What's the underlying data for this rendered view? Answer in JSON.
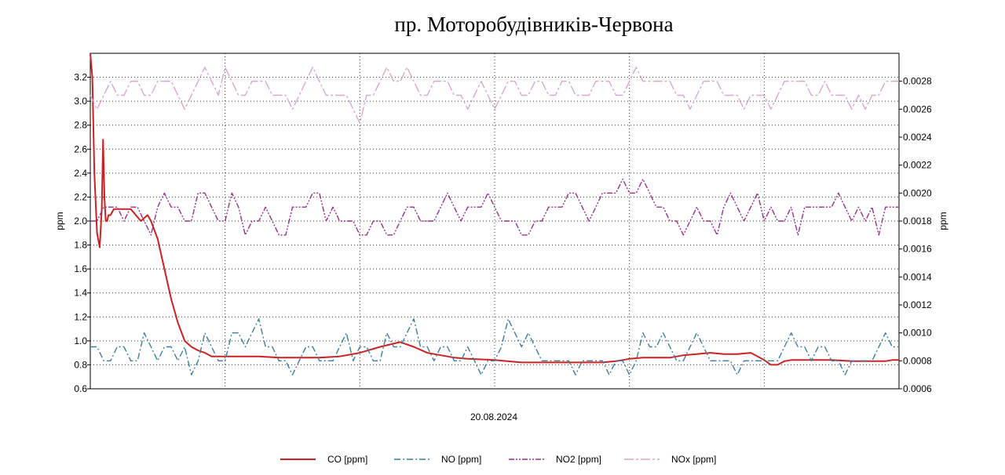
{
  "chart_data": {
    "type": "line",
    "title": "пр. Моторобудівників-Червона",
    "xlabel": "20.08.2024",
    "ylabel_left": "ppm",
    "ylabel_right": "ppm",
    "x_range": [
      0,
      120
    ],
    "ylim_left": [
      0.6,
      3.4
    ],
    "ylim_right": [
      0.0006,
      0.003
    ],
    "yticks_left": [
      "0.6",
      "0.8",
      "1.0",
      "1.2",
      "1.4",
      "1.6",
      "1.8",
      "2.0",
      "2.2",
      "2.4",
      "2.6",
      "2.8",
      "3.0",
      "3.2"
    ],
    "yticks_right": [
      "0.0006",
      "0.0008",
      "0.0010",
      "0.0012",
      "0.0014",
      "0.0016",
      "0.0018",
      "0.0020",
      "0.0022",
      "0.0024",
      "0.0026",
      "0.0028"
    ],
    "grid": true,
    "legend_position": "bottom",
    "series": [
      {
        "name": "CO [ppm]",
        "axis": "left",
        "color": "#cc2222",
        "dash": "solid",
        "x": [
          0,
          0.3,
          0.6,
          1,
          1.4,
          1.7,
          1.9,
          2.1,
          2.3,
          2.5,
          2.7,
          3,
          3.5,
          4.5,
          6,
          7.5,
          8.5,
          9,
          10,
          11,
          12,
          13,
          14,
          15,
          16,
          17,
          18,
          20,
          22,
          25,
          28,
          31,
          34,
          37,
          40,
          43,
          46,
          48,
          50,
          52,
          53,
          54,
          56,
          60,
          64,
          66,
          68,
          70,
          72,
          74,
          76,
          78,
          80,
          82,
          84,
          86,
          88,
          90,
          92,
          94,
          96,
          98,
          100,
          101,
          102,
          103,
          104,
          105,
          107,
          110,
          113,
          116,
          118,
          119,
          120
        ],
        "values": [
          3.4,
          3.2,
          2.4,
          1.9,
          1.78,
          2.1,
          2.68,
          2.2,
          2.0,
          2.0,
          2.05,
          2.05,
          2.1,
          2.1,
          2.1,
          2.0,
          2.05,
          2.0,
          1.85,
          1.6,
          1.35,
          1.15,
          1.0,
          0.95,
          0.92,
          0.9,
          0.87,
          0.87,
          0.87,
          0.87,
          0.86,
          0.86,
          0.86,
          0.87,
          0.9,
          0.95,
          0.99,
          0.95,
          0.9,
          0.88,
          0.87,
          0.86,
          0.85,
          0.84,
          0.82,
          0.82,
          0.82,
          0.82,
          0.82,
          0.82,
          0.82,
          0.83,
          0.85,
          0.86,
          0.86,
          0.86,
          0.88,
          0.89,
          0.9,
          0.89,
          0.89,
          0.9,
          0.84,
          0.8,
          0.8,
          0.83,
          0.84,
          0.84,
          0.84,
          0.84,
          0.83,
          0.83,
          0.83,
          0.84,
          0.84
        ]
      },
      {
        "name": "NO [ppm]",
        "axis": "right",
        "color": "#3a7fa0",
        "dash": "8 3 2 3",
        "x": [
          0,
          1,
          2,
          3,
          4,
          5,
          6,
          7,
          8,
          9,
          10,
          11,
          12,
          13,
          14,
          15,
          16,
          17,
          18,
          19,
          20,
          21,
          22,
          23,
          24,
          25,
          26,
          27,
          28,
          29,
          30,
          31,
          32,
          33,
          34,
          35,
          36,
          37,
          38,
          39,
          40,
          41,
          42,
          43,
          44,
          45,
          46,
          47,
          48,
          49,
          50,
          51,
          52,
          53,
          54,
          55,
          56,
          57,
          58,
          59,
          60,
          61,
          62,
          63,
          64,
          65,
          66,
          67,
          68,
          69,
          70,
          71,
          72,
          73,
          74,
          75,
          76,
          77,
          78,
          79,
          80,
          81,
          82,
          83,
          84,
          85,
          86,
          87,
          88,
          89,
          90,
          91,
          92,
          93,
          94,
          95,
          96,
          97,
          98,
          99,
          100,
          101,
          102,
          103,
          104,
          105,
          106,
          107,
          108,
          109,
          110,
          111,
          112,
          113,
          114,
          115,
          116,
          117,
          118,
          119,
          120
        ],
        "values": [
          0.0009,
          0.0009,
          0.0008,
          0.0008,
          0.0009,
          0.0009,
          0.0008,
          0.0008,
          0.001,
          0.0009,
          0.0008,
          0.0009,
          0.0009,
          0.0008,
          0.0009,
          0.0007,
          0.0008,
          0.001,
          0.0009,
          0.0008,
          0.0008,
          0.001,
          0.001,
          0.0009,
          0.001,
          0.0011,
          0.0009,
          0.0009,
          0.0008,
          0.0008,
          0.0007,
          0.0008,
          0.0009,
          0.0009,
          0.0008,
          0.0008,
          0.0008,
          0.0009,
          0.001,
          0.0008,
          0.0009,
          0.0009,
          0.0008,
          0.0008,
          0.001,
          0.0009,
          0.0009,
          0.001,
          0.0011,
          0.0009,
          0.0009,
          0.0008,
          0.0009,
          0.0009,
          0.0008,
          0.0008,
          0.0009,
          0.0008,
          0.0007,
          0.0008,
          0.0008,
          0.0009,
          0.0011,
          0.001,
          0.0009,
          0.001,
          0.0009,
          0.0008,
          0.0008,
          0.0008,
          0.0008,
          0.0008,
          0.0007,
          0.0008,
          0.0008,
          0.0008,
          0.0008,
          0.0007,
          0.0008,
          0.0008,
          0.0007,
          0.0008,
          0.001,
          0.0009,
          0.0009,
          0.001,
          0.0009,
          0.0008,
          0.0008,
          0.0009,
          0.001,
          0.0009,
          0.0008,
          0.0008,
          0.0008,
          0.0008,
          0.0007,
          0.0008,
          0.0008,
          0.0008,
          0.0008,
          0.0008,
          0.0008,
          0.0009,
          0.001,
          0.0009,
          0.0009,
          0.0008,
          0.0009,
          0.0009,
          0.0008,
          0.0008,
          0.0007,
          0.0008,
          0.0008,
          0.0008,
          0.0008,
          0.0009,
          0.001,
          0.0009,
          0.0009
        ]
      },
      {
        "name": "NO2 [ppm]",
        "axis": "right",
        "color": "#9b2d8f",
        "dash": "7 2 2 2 2 2",
        "x": [
          0,
          1,
          2,
          3,
          4,
          5,
          6,
          7,
          8,
          9,
          10,
          11,
          12,
          13,
          14,
          15,
          16,
          17,
          18,
          19,
          20,
          21,
          22,
          23,
          24,
          25,
          26,
          27,
          28,
          29,
          30,
          31,
          32,
          33,
          34,
          35,
          36,
          37,
          38,
          39,
          40,
          41,
          42,
          43,
          44,
          45,
          46,
          47,
          48,
          49,
          50,
          51,
          52,
          53,
          54,
          55,
          56,
          57,
          58,
          59,
          60,
          61,
          62,
          63,
          64,
          65,
          66,
          67,
          68,
          69,
          70,
          71,
          72,
          73,
          74,
          75,
          76,
          77,
          78,
          79,
          80,
          81,
          82,
          83,
          84,
          85,
          86,
          87,
          88,
          89,
          90,
          91,
          92,
          93,
          94,
          95,
          96,
          97,
          98,
          99,
          100,
          101,
          102,
          103,
          104,
          105,
          106,
          107,
          108,
          109,
          110,
          111,
          112,
          113,
          114,
          115,
          116,
          117,
          118,
          119,
          120
        ],
        "values": [
          0.0018,
          0.0018,
          0.0019,
          0.0019,
          0.0019,
          0.0018,
          0.0019,
          0.0019,
          0.0018,
          0.0017,
          0.0019,
          0.002,
          0.0019,
          0.0019,
          0.0018,
          0.0018,
          0.002,
          0.002,
          0.0019,
          0.0018,
          0.0018,
          0.002,
          0.0019,
          0.0017,
          0.0018,
          0.0018,
          0.0019,
          0.0018,
          0.0017,
          0.0017,
          0.0019,
          0.0019,
          0.0019,
          0.002,
          0.002,
          0.0018,
          0.0019,
          0.0018,
          0.0018,
          0.0018,
          0.0017,
          0.0017,
          0.0018,
          0.0018,
          0.0017,
          0.0017,
          0.0018,
          0.0019,
          0.0019,
          0.0018,
          0.0018,
          0.0018,
          0.0019,
          0.002,
          0.0019,
          0.0018,
          0.0019,
          0.0019,
          0.0019,
          0.002,
          0.0019,
          0.0018,
          0.0018,
          0.0018,
          0.0017,
          0.0017,
          0.0018,
          0.0018,
          0.0019,
          0.0019,
          0.0019,
          0.002,
          0.002,
          0.0019,
          0.0018,
          0.0019,
          0.002,
          0.002,
          0.002,
          0.0021,
          0.002,
          0.002,
          0.0021,
          0.002,
          0.0019,
          0.0019,
          0.0018,
          0.0018,
          0.0017,
          0.0018,
          0.0019,
          0.0018,
          0.0018,
          0.0017,
          0.0019,
          0.002,
          0.0019,
          0.0018,
          0.0019,
          0.002,
          0.0018,
          0.0019,
          0.0018,
          0.0018,
          0.0019,
          0.0017,
          0.0019,
          0.0019,
          0.0019,
          0.0019,
          0.0019,
          0.002,
          0.0019,
          0.0018,
          0.0019,
          0.0018,
          0.0019,
          0.0017,
          0.0019,
          0.0019,
          0.0019
        ]
      },
      {
        "name": "NOx [ppm]",
        "axis": "right",
        "color": "#d9a5d4",
        "dash": "12 3 3 3",
        "x": [
          0,
          1,
          2,
          3,
          4,
          5,
          6,
          7,
          8,
          9,
          10,
          11,
          12,
          13,
          14,
          15,
          16,
          17,
          18,
          19,
          20,
          21,
          22,
          23,
          24,
          25,
          26,
          27,
          28,
          29,
          30,
          31,
          32,
          33,
          34,
          35,
          36,
          37,
          38,
          39,
          40,
          41,
          42,
          43,
          44,
          45,
          46,
          47,
          48,
          49,
          50,
          51,
          52,
          53,
          54,
          55,
          56,
          57,
          58,
          59,
          60,
          61,
          62,
          63,
          64,
          65,
          66,
          67,
          68,
          69,
          70,
          71,
          72,
          73,
          74,
          75,
          76,
          77,
          78,
          79,
          80,
          81,
          82,
          83,
          84,
          85,
          86,
          87,
          88,
          89,
          90,
          91,
          92,
          93,
          94,
          95,
          96,
          97,
          98,
          99,
          100,
          101,
          102,
          103,
          104,
          105,
          106,
          107,
          108,
          109,
          110,
          111,
          112,
          113,
          114,
          115,
          116,
          117,
          118,
          119,
          120
        ],
        "values": [
          0.0027,
          0.0026,
          0.0027,
          0.0028,
          0.0027,
          0.0027,
          0.0028,
          0.0028,
          0.0027,
          0.0027,
          0.0028,
          0.0028,
          0.0028,
          0.0027,
          0.0026,
          0.0027,
          0.0028,
          0.0029,
          0.0028,
          0.0027,
          0.0029,
          0.0028,
          0.0027,
          0.0027,
          0.0028,
          0.0028,
          0.0028,
          0.0027,
          0.0027,
          0.0027,
          0.0026,
          0.0027,
          0.0028,
          0.0029,
          0.0028,
          0.0027,
          0.0027,
          0.0027,
          0.0027,
          0.0026,
          0.0025,
          0.0027,
          0.0027,
          0.0028,
          0.0029,
          0.0028,
          0.0028,
          0.0029,
          0.0028,
          0.0027,
          0.0027,
          0.0028,
          0.0028,
          0.0028,
          0.0027,
          0.0027,
          0.0026,
          0.0027,
          0.0028,
          0.0027,
          0.0026,
          0.0027,
          0.0028,
          0.0028,
          0.0027,
          0.0027,
          0.0028,
          0.0028,
          0.0027,
          0.0027,
          0.0028,
          0.0028,
          0.0027,
          0.0027,
          0.0027,
          0.0028,
          0.0028,
          0.0028,
          0.0027,
          0.0027,
          0.0028,
          0.0029,
          0.0028,
          0.0028,
          0.0028,
          0.0028,
          0.0028,
          0.0027,
          0.0027,
          0.0026,
          0.0027,
          0.0028,
          0.0028,
          0.0028,
          0.0027,
          0.0027,
          0.0027,
          0.0026,
          0.0027,
          0.0027,
          0.0027,
          0.0026,
          0.0027,
          0.0028,
          0.0028,
          0.0028,
          0.0028,
          0.0027,
          0.0027,
          0.0028,
          0.0027,
          0.0027,
          0.0027,
          0.0026,
          0.0027,
          0.0026,
          0.0027,
          0.0027,
          0.0028,
          0.0028,
          0.0028
        ]
      }
    ]
  }
}
